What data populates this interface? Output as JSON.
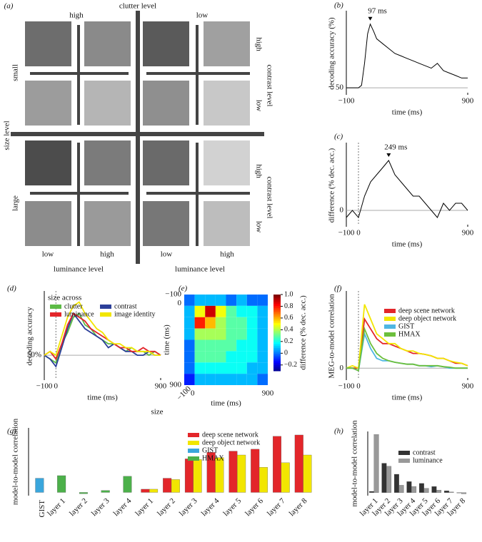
{
  "diagram": {
    "panel": "(a)",
    "clutter_title": "clutter level",
    "clutter_levels": [
      "high",
      "low"
    ],
    "size_title": "size level",
    "size_levels": [
      "small",
      "large"
    ],
    "contrast_titles": [
      "contrast level",
      "contrast level"
    ],
    "contrast_levels": [
      [
        "high",
        "low"
      ],
      [
        "high",
        "low"
      ]
    ],
    "luminance_titles": [
      "luminance level",
      "luminance level"
    ],
    "luminance_levels": [
      [
        "low",
        "high"
      ],
      [
        "low",
        "high"
      ]
    ]
  },
  "chart_data": [
    {
      "type": "line",
      "panel": "(b)",
      "ylabel": "decoding accuracy (%)",
      "xlabel": "time (ms)",
      "x": [
        -100,
        -50,
        0,
        25,
        50,
        75,
        97,
        125,
        150,
        200,
        250,
        300,
        350,
        400,
        450,
        500,
        550,
        600,
        650,
        700,
        750,
        800,
        850,
        900
      ],
      "series": [
        {
          "color": "#000000",
          "values": [
            50,
            50,
            50,
            51,
            60,
            72,
            76,
            73,
            70,
            68,
            66,
            64,
            63,
            62,
            61,
            60,
            59,
            58,
            60,
            57,
            56,
            55,
            54,
            54
          ]
        }
      ],
      "xlim": [
        -100,
        900
      ],
      "xticks": [
        {
          "value": -100,
          "label": "−100"
        },
        900
      ],
      "ylim": [
        48,
        80
      ],
      "yticks": [
        50
      ],
      "annotation": {
        "text": "97 ms",
        "x": 97
      }
    },
    {
      "type": "line",
      "panel": "(c)",
      "ylabel": "difference (% dec. acc.)",
      "xlabel": "time (ms)",
      "x": [
        -100,
        -50,
        0,
        50,
        100,
        150,
        200,
        249,
        300,
        350,
        400,
        450,
        500,
        550,
        600,
        650,
        700,
        750,
        800,
        850,
        900
      ],
      "series": [
        {
          "color": "#000000",
          "values": [
            -1,
            0,
            -1,
            2,
            4,
            5,
            6,
            7,
            5,
            4,
            3,
            2,
            2,
            1,
            0,
            -1,
            1,
            0,
            1,
            1,
            0
          ]
        }
      ],
      "xlim": [
        -100,
        900
      ],
      "xticks": [
        {
          "value": -100,
          "label": "−100"
        },
        0,
        900
      ],
      "ylim": [
        -2,
        9
      ],
      "yticks": [
        0
      ],
      "annotation": {
        "text": "249 ms",
        "x": 249
      }
    },
    {
      "type": "line",
      "panel": "(d)",
      "ylabel": "decoding accuracy",
      "xlabel": "time (ms)",
      "legend_title": "size across",
      "x": [
        -100,
        -50,
        0,
        50,
        100,
        150,
        200,
        250,
        300,
        350,
        400,
        450,
        500,
        550,
        600,
        650,
        700,
        750,
        800,
        850,
        900
      ],
      "series": [
        {
          "name": "clutter",
          "color": "#5dbb46",
          "values": [
            50,
            49,
            48,
            53,
            56,
            60,
            61,
            58,
            57,
            55,
            54,
            53,
            53,
            52,
            51,
            52,
            51,
            51,
            50,
            51,
            50
          ]
        },
        {
          "name": "contrast",
          "color": "#2c3f99",
          "values": [
            50,
            49,
            47,
            52,
            57,
            61,
            59,
            57,
            56,
            55,
            54,
            52,
            53,
            52,
            51,
            51,
            50,
            50,
            51,
            50,
            50
          ]
        },
        {
          "name": "luminance",
          "color": "#e3262a",
          "values": [
            50,
            51,
            49,
            53,
            58,
            61,
            60,
            59,
            57,
            56,
            55,
            54,
            53,
            52,
            52,
            51,
            51,
            52,
            51,
            51,
            50
          ]
        },
        {
          "name": "image identity",
          "color": "#f2e600",
          "values": [
            50,
            51,
            50,
            55,
            60,
            63,
            64,
            61,
            59,
            57,
            56,
            54,
            53,
            53,
            52,
            52,
            51,
            51,
            51,
            50,
            50
          ]
        }
      ],
      "xlim": [
        -100,
        900
      ],
      "xticks": [
        {
          "value": -100,
          "label": "−100"
        },
        0,
        900
      ],
      "ylim": [
        44,
        66
      ],
      "yticks": [
        {
          "value": 50,
          "label": "50%"
        }
      ]
    },
    {
      "type": "heatmap",
      "panel": "(e)",
      "xlabel": "time (ms)",
      "ylabel": "time (ms)",
      "xbins": [
        -100,
        25,
        150,
        275,
        400,
        525,
        650,
        775,
        900
      ],
      "ybins": [
        -100,
        25,
        150,
        275,
        400,
        525,
        650,
        775,
        900
      ],
      "z": [
        [
          0.0,
          0.1,
          0.1,
          0.1,
          0.0,
          0.1,
          0.0,
          0.0
        ],
        [
          0.1,
          0.5,
          0.9,
          0.5,
          0.3,
          0.2,
          0.2,
          0.1
        ],
        [
          0.1,
          0.8,
          0.6,
          0.4,
          0.3,
          0.3,
          0.2,
          0.1
        ],
        [
          0.1,
          0.4,
          0.4,
          0.4,
          0.3,
          0.3,
          0.2,
          0.1
        ],
        [
          0.0,
          0.3,
          0.3,
          0.3,
          0.3,
          0.2,
          0.2,
          0.1
        ],
        [
          0.0,
          0.3,
          0.3,
          0.3,
          0.2,
          0.2,
          0.2,
          0.1
        ],
        [
          0.0,
          0.2,
          0.2,
          0.2,
          0.2,
          0.2,
          0.1,
          0.1
        ],
        [
          -0.1,
          0.1,
          0.1,
          0.1,
          0.1,
          0.1,
          0.1,
          0.0
        ]
      ],
      "xlim": [
        -100,
        900
      ],
      "xticks": [
        {
          "value": -100,
          "label": "−100"
        },
        0,
        900
      ],
      "ylim": [
        900,
        -100
      ],
      "yticks": [
        {
          "value": -100,
          "label": "−100"
        },
        0,
        900
      ],
      "colorbar": {
        "label": "difference (% dec. acc.)",
        "lim": [
          -0.3,
          1.0
        ],
        "ticks": [
          {
            "value": 1,
            "label": "1.0"
          },
          0.8,
          0.6,
          0.4,
          0.2,
          0,
          {
            "value": -0.2,
            "label": "−0.2"
          }
        ]
      }
    },
    {
      "type": "line",
      "panel": "(f)",
      "ylabel": "MEG-to-model correlation",
      "xlabel": "time (ms)",
      "x": [
        -100,
        -50,
        0,
        50,
        100,
        150,
        200,
        250,
        300,
        350,
        400,
        450,
        500,
        550,
        600,
        650,
        700,
        750,
        800,
        850,
        900
      ],
      "series": [
        {
          "name": "deep scene network",
          "color": "#e3262a",
          "values": [
            0,
            0,
            0,
            0.1,
            0.08,
            0.06,
            0.05,
            0.05,
            0.045,
            0.04,
            0.035,
            0.03,
            0.03,
            0.028,
            0.025,
            0.02,
            0.02,
            0.015,
            0.01,
            0.01,
            0.005
          ]
        },
        {
          "name": "deep object network",
          "color": "#f2e600",
          "values": [
            0,
            0.005,
            0,
            0.13,
            0.1,
            0.07,
            0.06,
            0.05,
            0.05,
            0.04,
            0.035,
            0.035,
            0.03,
            0.028,
            0.025,
            0.02,
            0.02,
            0.015,
            0.012,
            0.01,
            0.005
          ]
        },
        {
          "name": "GIST",
          "color": "#4fb7e3",
          "values": [
            0,
            0,
            -0.005,
            0.07,
            0.04,
            0.02,
            0.015,
            0.015,
            0.012,
            0.01,
            0.008,
            0.008,
            0.005,
            0.005,
            0.003,
            0.005,
            0.003,
            0,
            0,
            0,
            0
          ]
        },
        {
          "name": "HMAX",
          "color": "#6cbf3c",
          "values": [
            0,
            0,
            -0.005,
            0.08,
            0.05,
            0.03,
            0.02,
            0.015,
            0.012,
            0.01,
            0.008,
            0.008,
            0.005,
            0.005,
            0.005,
            0.005,
            0.003,
            0.002,
            0,
            0,
            0
          ]
        }
      ],
      "xlim": [
        -100,
        900
      ],
      "xticks": [
        {
          "value": -100,
          "label": "−100"
        },
        0,
        900
      ],
      "ylim": [
        -0.02,
        0.15
      ],
      "yticks": [
        0
      ]
    },
    {
      "type": "bar",
      "panel": "(g)",
      "title": "size",
      "ylabel": "model-to-model correlation",
      "categories": [
        "GIST",
        "layer 1",
        "layer 2",
        "layer 3",
        "layer 4",
        "layer 1",
        "layer 2",
        "layer 3",
        "layer 4",
        "layer 5",
        "layer 6",
        "layer 7",
        "layer 8"
      ],
      "series": [
        {
          "name": "deep scene network",
          "color": "#e3262a",
          "values": [
            null,
            null,
            null,
            null,
            null,
            0.05,
            0.22,
            0.52,
            0.62,
            0.64,
            0.67,
            0.87,
            0.89
          ]
        },
        {
          "name": "deep object network",
          "color": "#f2e600",
          "values": [
            null,
            null,
            null,
            null,
            null,
            0.05,
            0.2,
            0.51,
            0.54,
            0.58,
            0.39,
            0.46,
            0.58
          ]
        },
        {
          "name": "GIST",
          "color": "#3aa6dc",
          "values": [
            0.22,
            null,
            null,
            null,
            null,
            null,
            null,
            null,
            null,
            null,
            null,
            null,
            null
          ]
        },
        {
          "name": "HMAX",
          "color": "#4cb04a",
          "values": [
            null,
            0.26,
            -0.02,
            0.03,
            0.25,
            null,
            null,
            null,
            null,
            null,
            null,
            null,
            null
          ]
        }
      ],
      "ylim": [
        -0.05,
        1.0
      ]
    },
    {
      "type": "bar",
      "panel": "(h)",
      "ylabel": "model-to-model correlation",
      "categories": [
        "layer 1",
        "layer 2",
        "layer 3",
        "layer 4",
        "layer 5",
        "layer 6",
        "layer 7",
        "layer 8"
      ],
      "series": [
        {
          "name": "contrast",
          "color": "#333333",
          "values": [
            0.02,
            0.48,
            0.3,
            0.18,
            0.15,
            0.1,
            0.03,
            0.0
          ]
        },
        {
          "name": "luminance",
          "color": "#999999",
          "values": [
            0.95,
            0.43,
            0.12,
            0.1,
            0.07,
            0.04,
            0.01,
            -0.02
          ]
        }
      ],
      "ylim": [
        -0.05,
        1.0
      ]
    }
  ]
}
